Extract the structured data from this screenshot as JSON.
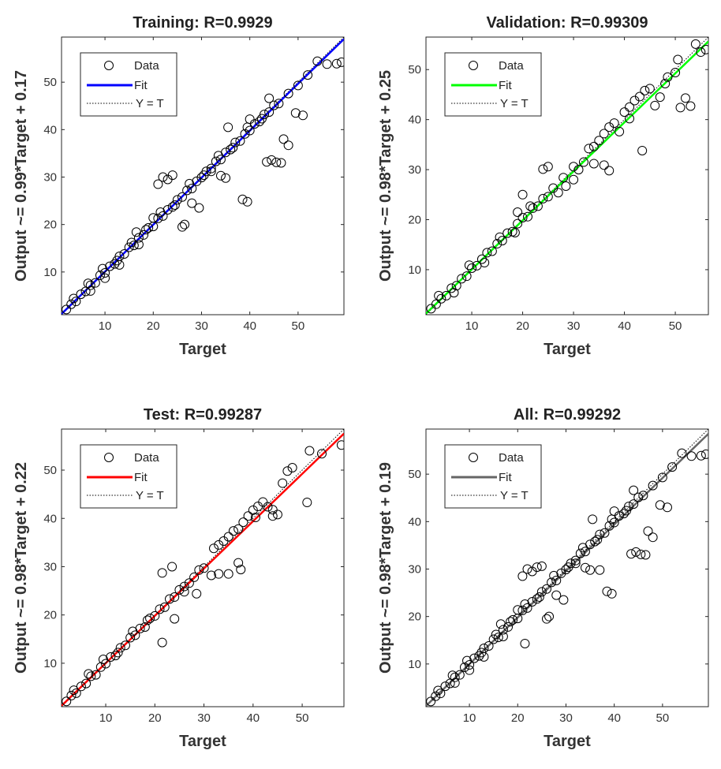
{
  "chart_data": [
    {
      "type": "scatter",
      "title": "Training: R=0.9929",
      "xlabel": "Target",
      "ylabel": "Output ~= 0.99*Target + 0.17",
      "xlim": [
        1,
        59.5
      ],
      "ylim": [
        1,
        59.5
      ],
      "xticks": [
        10,
        20,
        30,
        40,
        50
      ],
      "yticks": [
        10,
        20,
        30,
        40,
        50
      ],
      "fit": {
        "slope": 0.99,
        "intercept": 0.17,
        "color": "#0000ff"
      },
      "legend": [
        "Data",
        "Fit",
        "Y = T"
      ],
      "legend_placement": "top-left",
      "points": [
        [
          2,
          2.1
        ],
        [
          3,
          3.2
        ],
        [
          4,
          3.8
        ],
        [
          5,
          5.3
        ],
        [
          6,
          5.9
        ],
        [
          7,
          7.2
        ],
        [
          8,
          7.7
        ],
        [
          9,
          9.3
        ],
        [
          10,
          9.8
        ],
        [
          11,
          11.2
        ],
        [
          12,
          11.7
        ],
        [
          13,
          13.3
        ],
        [
          14,
          13.8
        ],
        [
          15,
          15.2
        ],
        [
          16,
          15.6
        ],
        [
          17,
          17.2
        ],
        [
          18,
          17.8
        ],
        [
          19,
          19.3
        ],
        [
          20,
          19.6
        ],
        [
          21,
          21.3
        ],
        [
          22,
          21.8
        ],
        [
          23,
          23.1
        ],
        [
          24,
          23.7
        ],
        [
          25,
          25.2
        ],
        [
          26,
          25.8
        ],
        [
          27,
          27.2
        ],
        [
          28,
          27.6
        ],
        [
          29,
          29.1
        ],
        [
          30,
          29.9
        ],
        [
          31,
          31.2
        ],
        [
          32,
          31.8
        ],
        [
          33,
          33.3
        ],
        [
          34,
          33.7
        ],
        [
          35,
          35.2
        ],
        [
          36,
          35.8
        ],
        [
          37,
          37.3
        ],
        [
          38,
          37.6
        ],
        [
          39,
          39.1
        ],
        [
          40,
          39.8
        ],
        [
          41,
          41.2
        ],
        [
          42,
          41.7
        ],
        [
          43,
          43.2
        ],
        [
          44,
          43.7
        ],
        [
          45,
          45.1
        ],
        [
          46,
          45.5
        ],
        [
          48,
          47.6
        ],
        [
          50,
          49.3
        ],
        [
          52,
          51.5
        ],
        [
          54,
          54.4
        ],
        [
          56,
          53.8
        ],
        [
          58,
          53.9
        ],
        [
          59,
          54.2
        ],
        [
          3.5,
          4.4
        ],
        [
          6.5,
          7.6
        ],
        [
          9.5,
          10.7
        ],
        [
          12.5,
          12.4
        ],
        [
          15.5,
          16.2
        ],
        [
          18.5,
          18.9
        ],
        [
          21.5,
          22.6
        ],
        [
          24.5,
          24.1
        ],
        [
          27.5,
          28.6
        ],
        [
          30.5,
          30.4
        ],
        [
          33.5,
          34.5
        ],
        [
          36.5,
          36.2
        ],
        [
          39.5,
          40.5
        ],
        [
          42.5,
          42.3
        ],
        [
          22,
          30
        ],
        [
          23,
          29.5
        ],
        [
          24,
          30.4
        ],
        [
          21,
          28.5
        ],
        [
          34,
          30.3
        ],
        [
          35,
          29.8
        ],
        [
          43.5,
          33.2
        ],
        [
          44.5,
          33.6
        ],
        [
          45.5,
          33.1
        ],
        [
          46.5,
          33
        ],
        [
          38.5,
          25.3
        ],
        [
          39.5,
          24.8
        ],
        [
          26,
          19.5
        ],
        [
          26.5,
          20
        ],
        [
          47,
          38
        ],
        [
          48,
          36.7
        ],
        [
          49.5,
          43.5
        ],
        [
          51,
          43
        ],
        [
          7,
          6
        ],
        [
          10,
          8.7
        ],
        [
          13,
          11.5
        ],
        [
          17,
          15.8
        ],
        [
          16.5,
          18.4
        ],
        [
          20,
          21.4
        ],
        [
          28,
          24.5
        ],
        [
          29.5,
          23.5
        ],
        [
          32,
          31.2
        ],
        [
          35.5,
          40.5
        ],
        [
          44,
          46.6
        ],
        [
          40,
          42.2
        ]
      ]
    },
    {
      "type": "scatter",
      "title": "Validation: R=0.99309",
      "xlabel": "Target",
      "ylabel": "Output ~= 0.98*Target + 0.25",
      "xlim": [
        1,
        56.5
      ],
      "ylim": [
        1,
        56.5
      ],
      "xticks": [
        10,
        20,
        30,
        40,
        50
      ],
      "yticks": [
        10,
        20,
        30,
        40,
        50
      ],
      "fit": {
        "slope": 0.98,
        "intercept": 0.25,
        "color": "#00ff00"
      },
      "legend": [
        "Data",
        "Fit",
        "Y = T"
      ],
      "legend_placement": "top-left",
      "points": [
        [
          2,
          2.2
        ],
        [
          3,
          3.1
        ],
        [
          4,
          4.2
        ],
        [
          5,
          4.8
        ],
        [
          6,
          6.3
        ],
        [
          7,
          6.8
        ],
        [
          8,
          8.2
        ],
        [
          9,
          8.7
        ],
        [
          10,
          10.3
        ],
        [
          11,
          10.8
        ],
        [
          12,
          12.1
        ],
        [
          13,
          13.4
        ],
        [
          14,
          13.7
        ],
        [
          15,
          15.2
        ],
        [
          16,
          15.8
        ],
        [
          17,
          17.3
        ],
        [
          18,
          17.6
        ],
        [
          19,
          19.2
        ],
        [
          20,
          20.4
        ],
        [
          21,
          20.6
        ],
        [
          22,
          22.3
        ],
        [
          23,
          22.7
        ],
        [
          24,
          24.2
        ],
        [
          25,
          24.6
        ],
        [
          26,
          26.3
        ],
        [
          28,
          28.4
        ],
        [
          30,
          30.6
        ],
        [
          31,
          30
        ],
        [
          32,
          31.5
        ],
        [
          33,
          34.2
        ],
        [
          34,
          34.6
        ],
        [
          35,
          35.8
        ],
        [
          36,
          37.2
        ],
        [
          37,
          38.5
        ],
        [
          38,
          39.3
        ],
        [
          39,
          37.6
        ],
        [
          40,
          41.5
        ],
        [
          41,
          40.2
        ],
        [
          42,
          43.8
        ],
        [
          43,
          44.6
        ],
        [
          44,
          45.8
        ],
        [
          45,
          46.2
        ],
        [
          46,
          42.8
        ],
        [
          47,
          44.5
        ],
        [
          48,
          47.2
        ],
        [
          50,
          49.4
        ],
        [
          51,
          42.4
        ],
        [
          52,
          44.3
        ],
        [
          53,
          42.7
        ],
        [
          54,
          55.1
        ],
        [
          55,
          53.5
        ],
        [
          56,
          54
        ],
        [
          43.5,
          33.8
        ],
        [
          37,
          29.8
        ],
        [
          25,
          30.6
        ],
        [
          24,
          30.1
        ],
        [
          20,
          25
        ],
        [
          19,
          21.5
        ],
        [
          28.5,
          26.7
        ],
        [
          30,
          28
        ],
        [
          27,
          25.4
        ],
        [
          3.5,
          4.8
        ],
        [
          6.5,
          5.4
        ],
        [
          9.5,
          10.9
        ],
        [
          12.5,
          11.4
        ],
        [
          15.5,
          16.5
        ],
        [
          18.5,
          17.4
        ],
        [
          21.5,
          22.7
        ],
        [
          36,
          30.9
        ],
        [
          34,
          31.2
        ],
        [
          41,
          42.5
        ],
        [
          48.5,
          48.5
        ],
        [
          50.5,
          52
        ]
      ]
    },
    {
      "type": "scatter",
      "title": "Test: R=0.99287",
      "xlabel": "Target",
      "ylabel": "Output ~= 0.98*Target + 0.22",
      "xlim": [
        1,
        58.5
      ],
      "ylim": [
        1,
        58.5
      ],
      "xticks": [
        10,
        20,
        30,
        40,
        50
      ],
      "yticks": [
        10,
        20,
        30,
        40,
        50
      ],
      "fit": {
        "slope": 0.98,
        "intercept": 0.22,
        "color": "#ff0000"
      },
      "legend": [
        "Data",
        "Fit",
        "Y = T"
      ],
      "legend_placement": "top-left",
      "points": [
        [
          2,
          2.1
        ],
        [
          3,
          3.3
        ],
        [
          4,
          3.8
        ],
        [
          5,
          5.2
        ],
        [
          6,
          5.8
        ],
        [
          7,
          7.3
        ],
        [
          8,
          7.6
        ],
        [
          9,
          9.2
        ],
        [
          10,
          9.9
        ],
        [
          11,
          11.3
        ],
        [
          12,
          11.6
        ],
        [
          13,
          13.2
        ],
        [
          14,
          13.7
        ],
        [
          15,
          15.3
        ],
        [
          16,
          15.8
        ],
        [
          17,
          17.2
        ],
        [
          18,
          17.5
        ],
        [
          19,
          19.3
        ],
        [
          20,
          19.8
        ],
        [
          21,
          21.2
        ],
        [
          22,
          21.6
        ],
        [
          23,
          23.3
        ],
        [
          24,
          23.7
        ],
        [
          25,
          25.2
        ],
        [
          26,
          25.9
        ],
        [
          27,
          26.6
        ],
        [
          28,
          27.8
        ],
        [
          29,
          29.3
        ],
        [
          30,
          29.7
        ],
        [
          32,
          33.8
        ],
        [
          33,
          34.5
        ],
        [
          34,
          35.3
        ],
        [
          35,
          36.2
        ],
        [
          36,
          37.4
        ],
        [
          37,
          37.8
        ],
        [
          38,
          39.2
        ],
        [
          39,
          40.5
        ],
        [
          40,
          41.7
        ],
        [
          41,
          42.5
        ],
        [
          42,
          43.4
        ],
        [
          43,
          42.4
        ],
        [
          44,
          41.8
        ],
        [
          45,
          40.8
        ],
        [
          46,
          47.3
        ],
        [
          47,
          49.8
        ],
        [
          48,
          50.5
        ],
        [
          51,
          43.3
        ],
        [
          51.5,
          54
        ],
        [
          54,
          53.4
        ],
        [
          58,
          55.2
        ],
        [
          21.5,
          14.3
        ],
        [
          21.5,
          28.7
        ],
        [
          23.5,
          30
        ],
        [
          26,
          24.8
        ],
        [
          31.5,
          28.2
        ],
        [
          33,
          28.5
        ],
        [
          35,
          28.5
        ],
        [
          37.5,
          29.4
        ],
        [
          37,
          30.8
        ],
        [
          24,
          19.2
        ],
        [
          28.5,
          24.4
        ],
        [
          3.5,
          4.4
        ],
        [
          6.5,
          7.8
        ],
        [
          9.5,
          10.8
        ],
        [
          12.5,
          12.2
        ],
        [
          15.5,
          16.6
        ],
        [
          18.5,
          18.9
        ],
        [
          40.5,
          40.2
        ],
        [
          44,
          40.5
        ]
      ]
    },
    {
      "type": "scatter",
      "title": "All: R=0.99292",
      "xlabel": "Target",
      "ylabel": "Output ~= 0.98*Target + 0.19",
      "xlim": [
        1,
        59.5
      ],
      "ylim": [
        1,
        59.5
      ],
      "xticks": [
        10,
        20,
        30,
        40,
        50
      ],
      "yticks": [
        10,
        20,
        30,
        40,
        50
      ],
      "fit": {
        "slope": 0.98,
        "intercept": 0.19,
        "color": "#666666"
      },
      "legend": [
        "Data",
        "Fit",
        "Y = T"
      ],
      "legend_placement": "top-left",
      "points": [
        [
          2,
          2.1
        ],
        [
          3,
          3.2
        ],
        [
          4,
          3.8
        ],
        [
          5,
          5.3
        ],
        [
          6,
          5.9
        ],
        [
          7,
          7.2
        ],
        [
          8,
          7.7
        ],
        [
          9,
          9.3
        ],
        [
          10,
          9.8
        ],
        [
          11,
          11.2
        ],
        [
          12,
          11.7
        ],
        [
          13,
          13.3
        ],
        [
          14,
          13.8
        ],
        [
          15,
          15.2
        ],
        [
          16,
          15.6
        ],
        [
          17,
          17.2
        ],
        [
          18,
          17.8
        ],
        [
          19,
          19.3
        ],
        [
          20,
          19.6
        ],
        [
          21,
          21.3
        ],
        [
          22,
          21.8
        ],
        [
          23,
          23.1
        ],
        [
          24,
          23.7
        ],
        [
          25,
          25.2
        ],
        [
          26,
          25.8
        ],
        [
          27,
          27.2
        ],
        [
          28,
          27.6
        ],
        [
          29,
          29.1
        ],
        [
          30,
          29.9
        ],
        [
          31,
          31.2
        ],
        [
          32,
          31.8
        ],
        [
          33,
          33.3
        ],
        [
          34,
          33.7
        ],
        [
          35,
          35.2
        ],
        [
          36,
          35.8
        ],
        [
          37,
          37.3
        ],
        [
          38,
          37.6
        ],
        [
          39,
          39.1
        ],
        [
          40,
          39.8
        ],
        [
          41,
          41.2
        ],
        [
          42,
          41.7
        ],
        [
          43,
          43.2
        ],
        [
          44,
          43.7
        ],
        [
          45,
          45.1
        ],
        [
          46,
          45.5
        ],
        [
          48,
          47.6
        ],
        [
          50,
          49.3
        ],
        [
          52,
          51.5
        ],
        [
          54,
          54.4
        ],
        [
          56,
          53.8
        ],
        [
          58,
          53.9
        ],
        [
          59,
          54.2
        ],
        [
          3.5,
          4.4
        ],
        [
          6.5,
          7.6
        ],
        [
          9.5,
          10.7
        ],
        [
          12.5,
          12.4
        ],
        [
          15.5,
          16.2
        ],
        [
          18.5,
          18.9
        ],
        [
          21.5,
          22.6
        ],
        [
          24.5,
          24.1
        ],
        [
          27.5,
          28.6
        ],
        [
          30.5,
          30.4
        ],
        [
          33.5,
          34.5
        ],
        [
          36.5,
          36.2
        ],
        [
          39.5,
          40.5
        ],
        [
          42.5,
          42.3
        ],
        [
          22,
          30
        ],
        [
          23,
          29.5
        ],
        [
          24,
          30.4
        ],
        [
          21,
          28.5
        ],
        [
          34,
          30.3
        ],
        [
          35,
          29.8
        ],
        [
          43.5,
          33.2
        ],
        [
          44.5,
          33.6
        ],
        [
          45.5,
          33.1
        ],
        [
          46.5,
          33
        ],
        [
          38.5,
          25.3
        ],
        [
          39.5,
          24.8
        ],
        [
          26,
          19.5
        ],
        [
          26.5,
          20
        ],
        [
          47,
          38
        ],
        [
          48,
          36.7
        ],
        [
          49.5,
          43.5
        ],
        [
          51,
          43
        ],
        [
          21.5,
          14.3
        ],
        [
          7,
          6
        ],
        [
          10,
          8.7
        ],
        [
          13,
          11.5
        ],
        [
          17,
          15.8
        ],
        [
          16.5,
          18.4
        ],
        [
          20,
          21.4
        ],
        [
          28,
          24.5
        ],
        [
          29.5,
          23.5
        ],
        [
          32,
          31.2
        ],
        [
          35.5,
          40.5
        ],
        [
          44,
          46.6
        ],
        [
          40,
          42.2
        ],
        [
          37,
          29.8
        ],
        [
          25,
          30.6
        ]
      ]
    }
  ]
}
